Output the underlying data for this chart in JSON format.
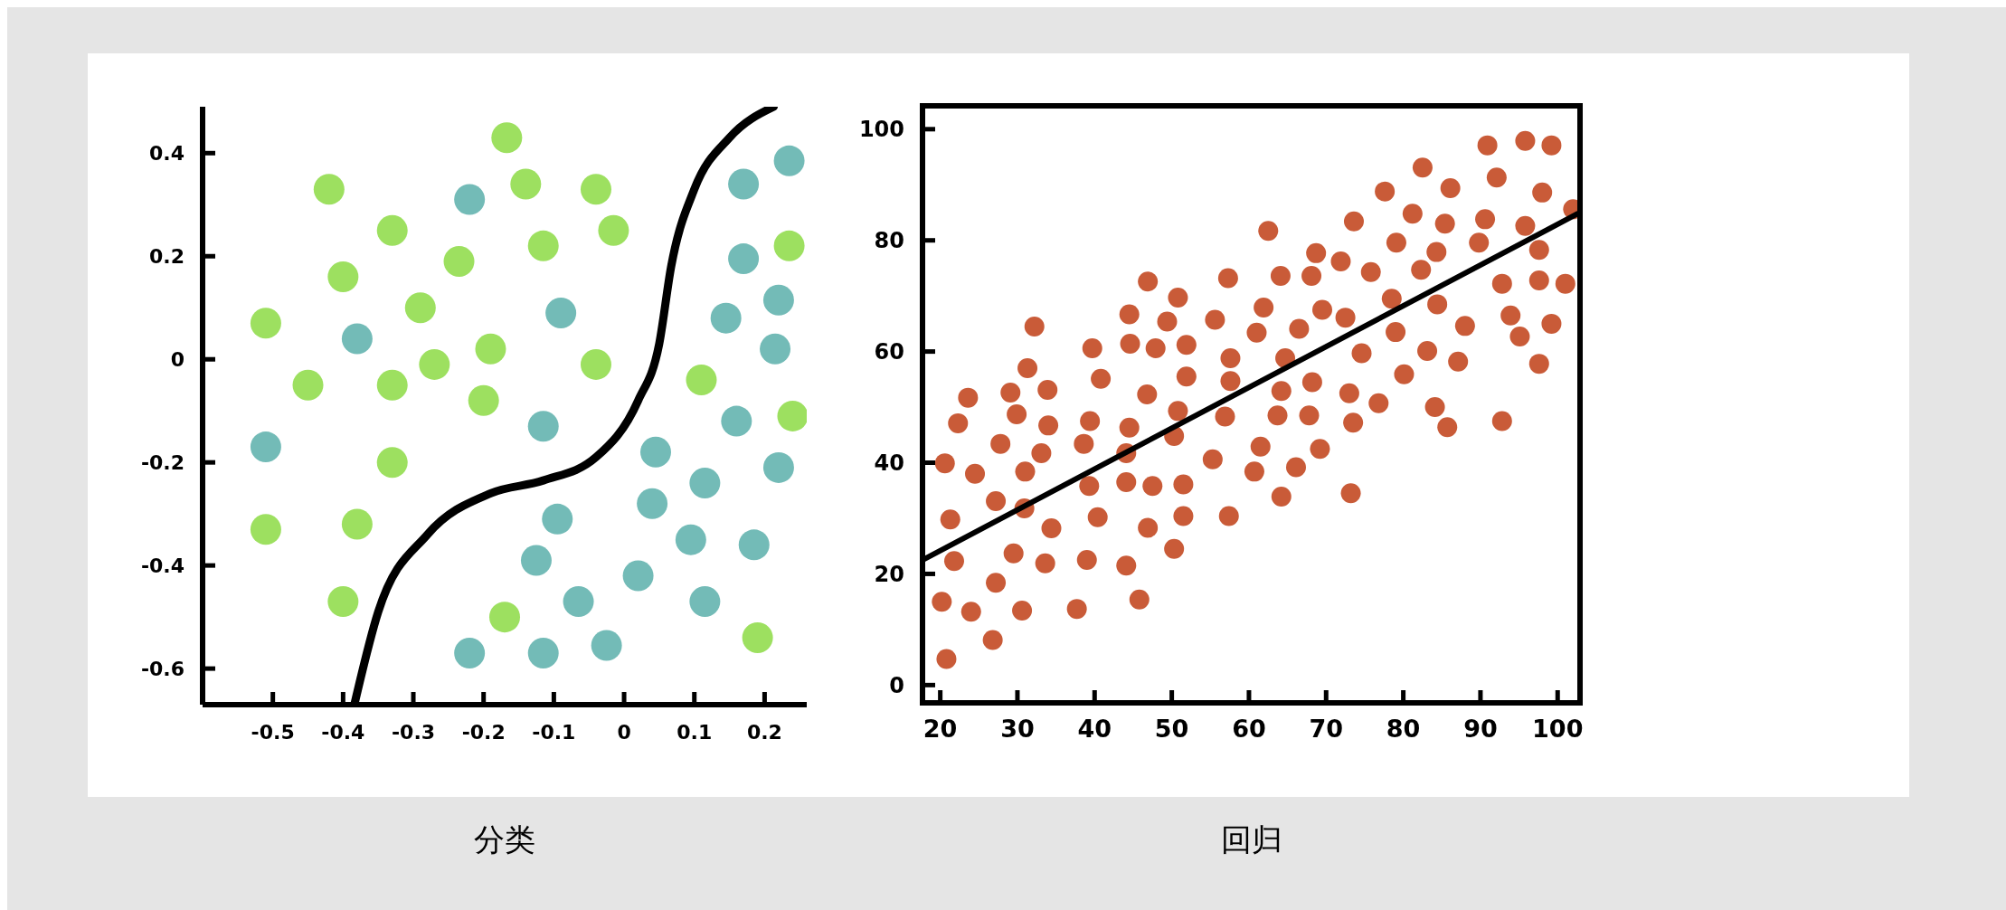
{
  "chart_data": [
    {
      "type": "scatter",
      "title": "分类",
      "xlim": [
        -0.6,
        0.26
      ],
      "ylim": [
        -0.67,
        0.49
      ],
      "xticks": [
        -0.5,
        -0.4,
        -0.3,
        -0.2,
        -0.1,
        0,
        0.1,
        0.2
      ],
      "yticks": [
        -0.6,
        -0.4,
        -0.2,
        0,
        0.2,
        0.4
      ],
      "series": [
        {
          "marker": "circle",
          "color": "#9de060",
          "x": [
            -0.167,
            -0.42,
            -0.14,
            -0.04,
            -0.33,
            -0.015,
            -0.115,
            -0.235,
            -0.4,
            -0.29,
            -0.51,
            -0.27,
            -0.19,
            -0.04,
            -0.45,
            -0.33,
            -0.2,
            0.11,
            0.24,
            -0.33,
            -0.51,
            -0.38,
            -0.4,
            -0.17,
            0.19,
            0.235
          ],
          "values": [
            0.43,
            0.33,
            0.34,
            0.33,
            0.25,
            0.25,
            0.22,
            0.19,
            0.16,
            0.1,
            0.07,
            -0.01,
            0.02,
            -0.01,
            -0.05,
            -0.05,
            -0.08,
            -0.04,
            -0.11,
            -0.2,
            -0.33,
            -0.32,
            -0.47,
            -0.5,
            -0.54,
            0.22
          ]
        },
        {
          "marker": "circle",
          "color": "#73bbb7",
          "x": [
            0.235,
            0.17,
            -0.22,
            0.17,
            0.22,
            -0.09,
            0.145,
            -0.38,
            0.215,
            0.16,
            -0.115,
            -0.51,
            0.045,
            0.22,
            0.115,
            0.04,
            -0.095,
            0.095,
            0.185,
            -0.125,
            0.02,
            -0.065,
            0.115,
            -0.22,
            -0.115,
            -0.025
          ],
          "values": [
            0.385,
            0.34,
            0.31,
            0.195,
            0.115,
            0.09,
            0.08,
            0.04,
            0.02,
            -0.12,
            -0.13,
            -0.17,
            -0.18,
            -0.21,
            -0.24,
            -0.28,
            -0.31,
            -0.35,
            -0.36,
            -0.39,
            -0.42,
            -0.47,
            -0.47,
            -0.57,
            -0.57,
            -0.555
          ]
        },
        {
          "type": "line",
          "color": "#000000",
          "line_style": "solid",
          "x": [
            -0.384,
            -0.35,
            -0.28,
            -0.19,
            -0.115,
            -0.04,
            0.02,
            0.05,
            0.067,
            0.1,
            0.15,
            0.213
          ],
          "values": [
            -0.67,
            -0.49,
            -0.34,
            -0.26,
            -0.235,
            -0.19,
            -0.08,
            0.03,
            0.18,
            0.33,
            0.43,
            0.49
          ]
        }
      ]
    },
    {
      "type": "scatter",
      "title": "回归",
      "xlim": [
        17.7,
        102.9
      ],
      "ylim": [
        -3.2,
        104.2
      ],
      "xticks": [
        20,
        30,
        40,
        50,
        60,
        70,
        80,
        90,
        100
      ],
      "yticks": [
        0,
        20,
        40,
        60,
        80,
        100
      ],
      "series": [
        {
          "marker": "circle",
          "color": "#c95b38",
          "x": [
            90.9,
            95.8,
            99.2,
            82.5,
            92.1,
            77.6,
            86.1,
            98.0,
            102.0,
            81.2,
            73.6,
            90.6,
            85.4,
            62.5,
            95.8,
            79.1,
            89.8,
            84.3,
            68.7,
            97.6,
            71.9,
            75.8,
            82.3,
            57.3,
            64.1,
            68.1,
            46.9,
            92.8,
            97.6,
            101.0,
            50.8,
            78.5,
            84.4,
            61.9,
            69.5,
            44.5,
            93.9,
            72.5,
            55.6,
            49.4,
            32.2,
            99.2,
            88.0,
            66.5,
            61.0,
            79.0,
            95.1,
            44.6,
            39.7,
            47.9,
            51.9,
            83.1,
            74.6,
            57.6,
            64.7,
            87.1,
            97.6,
            31.3,
            80.1,
            40.8,
            51.9,
            57.6,
            68.2,
            23.6,
            29.1,
            33.9,
            46.8,
            64.2,
            73.0,
            50.8,
            76.8,
            84.1,
            29.9,
            56.9,
            63.7,
            67.8,
            22.3,
            39.4,
            34.0,
            44.5,
            73.5,
            92.8,
            85.7,
            27.8,
            38.6,
            50.3,
            61.5,
            69.2,
            33.1,
            44.1,
            20.6,
            55.3,
            24.5,
            31.0,
            60.7,
            66.1,
            39.3,
            44.1,
            47.5,
            51.5,
            64.2,
            73.2,
            27.2,
            30.9,
            21.3,
            40.4,
            51.5,
            57.4,
            34.4,
            46.9,
            29.5,
            50.3,
            21.8,
            33.6,
            39.0,
            44.1,
            27.2,
            20.2,
            24.0,
            30.6,
            37.7,
            45.8,
            26.8,
            20.8
          ],
          "values": [
            97.1,
            97.9,
            97.1,
            93.1,
            91.3,
            88.8,
            89.4,
            88.6,
            85.6,
            84.8,
            83.4,
            83.8,
            83.0,
            81.7,
            82.6,
            79.6,
            79.6,
            77.9,
            77.7,
            78.3,
            76.2,
            74.3,
            74.7,
            73.2,
            73.6,
            73.6,
            72.6,
            72.2,
            72.8,
            72.2,
            69.7,
            69.5,
            68.5,
            67.9,
            67.5,
            66.7,
            66.5,
            66.1,
            65.7,
            65.4,
            64.5,
            65.0,
            64.6,
            64.1,
            63.4,
            63.5,
            62.7,
            61.4,
            60.6,
            60.6,
            61.2,
            60.1,
            59.7,
            58.8,
            58.8,
            58.2,
            57.8,
            57.0,
            55.9,
            55.1,
            55.5,
            54.7,
            54.5,
            51.7,
            52.6,
            53.1,
            52.3,
            52.9,
            52.5,
            49.3,
            50.7,
            50.0,
            48.7,
            48.3,
            48.5,
            48.5,
            47.1,
            47.5,
            46.7,
            46.3,
            47.2,
            47.5,
            46.4,
            43.4,
            43.4,
            44.8,
            42.9,
            42.5,
            41.7,
            41.7,
            39.9,
            40.6,
            38.0,
            38.4,
            38.4,
            39.2,
            35.8,
            36.5,
            35.8,
            36.1,
            33.9,
            34.5,
            33.1,
            31.8,
            29.8,
            30.2,
            30.4,
            30.4,
            28.2,
            28.3,
            23.7,
            24.5,
            22.3,
            21.9,
            22.5,
            21.5,
            18.4,
            15.0,
            13.2,
            13.4,
            13.7,
            15.4,
            8.1,
            4.7
          ]
        },
        {
          "type": "line",
          "color": "#000000",
          "line_style": "solid",
          "x": [
            17.7,
            102.6
          ],
          "values": [
            22.5,
            84.8
          ]
        }
      ]
    }
  ]
}
